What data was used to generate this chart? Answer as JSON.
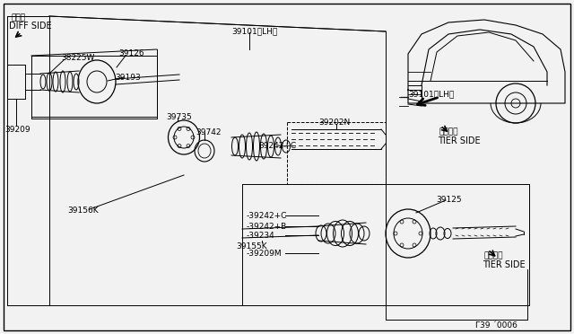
{
  "bg_color": "#f2f2f2",
  "labels": {
    "diff_side_jp": "デフ側",
    "diff_side_en": "DIFF SIDE",
    "tier_side_jp1": "タイヤ側",
    "tier_side_en1": "TIER SIDE",
    "tier_side_jp2": "タイヤ側",
    "tier_side_en2": "TIER SIDE",
    "part_39101_lh_top": "39101（LH）",
    "part_39101_lh_side": "39101（LH）",
    "part_38225w": "38225W",
    "part_39126": "39126",
    "part_39193": "39193",
    "part_39209": "39209",
    "part_39735": "39735",
    "part_39742": "39742",
    "part_39202n": "39202N",
    "part_39242c_1": "39242+C",
    "part_39156k": "39156K",
    "part_39155k": "39155K",
    "part_39242c_2": "39242+C",
    "part_39242b": "39242+B",
    "part_39234": "39234",
    "part_39125": "39125",
    "part_39209m": "39209M"
  },
  "diagram_number": "Γ39 0006"
}
